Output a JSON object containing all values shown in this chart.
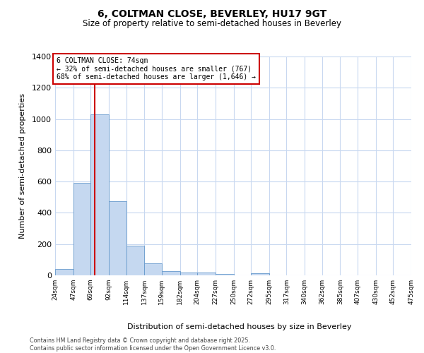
{
  "title1": "6, COLTMAN CLOSE, BEVERLEY, HU17 9GT",
  "title2": "Size of property relative to semi-detached houses in Beverley",
  "xlabel": "Distribution of semi-detached houses by size in Beverley",
  "ylabel": "Number of semi-detached properties",
  "bin_edges": [
    24,
    47,
    69,
    92,
    114,
    137,
    159,
    182,
    204,
    227,
    250,
    272,
    295,
    317,
    340,
    362,
    385,
    407,
    430,
    452,
    475
  ],
  "bar_heights": [
    40,
    590,
    1030,
    475,
    190,
    75,
    25,
    20,
    20,
    10,
    0,
    15,
    0,
    0,
    0,
    0,
    0,
    0,
    0,
    0
  ],
  "bar_color": "#c5d8f0",
  "bar_edge_color": "#6699cc",
  "background_color": "#ffffff",
  "grid_color": "#c8d8f0",
  "property_size": 74,
  "red_line_color": "#cc0000",
  "annotation_title": "6 COLTMAN CLOSE: 74sqm",
  "annotation_line1": "← 32% of semi-detached houses are smaller (767)",
  "annotation_line2": "68% of semi-detached houses are larger (1,646) →",
  "annotation_box_color": "#ffffff",
  "annotation_box_edge": "#cc0000",
  "ylim": [
    0,
    1400
  ],
  "yticks": [
    0,
    200,
    400,
    600,
    800,
    1000,
    1200,
    1400
  ],
  "tick_labels": [
    "24sqm",
    "47sqm",
    "69sqm",
    "92sqm",
    "114sqm",
    "137sqm",
    "159sqm",
    "182sqm",
    "204sqm",
    "227sqm",
    "250sqm",
    "272sqm",
    "295sqm",
    "317sqm",
    "340sqm",
    "362sqm",
    "385sqm",
    "407sqm",
    "430sqm",
    "452sqm",
    "475sqm"
  ],
  "footnote1": "Contains HM Land Registry data © Crown copyright and database right 2025.",
  "footnote2": "Contains public sector information licensed under the Open Government Licence v3.0."
}
